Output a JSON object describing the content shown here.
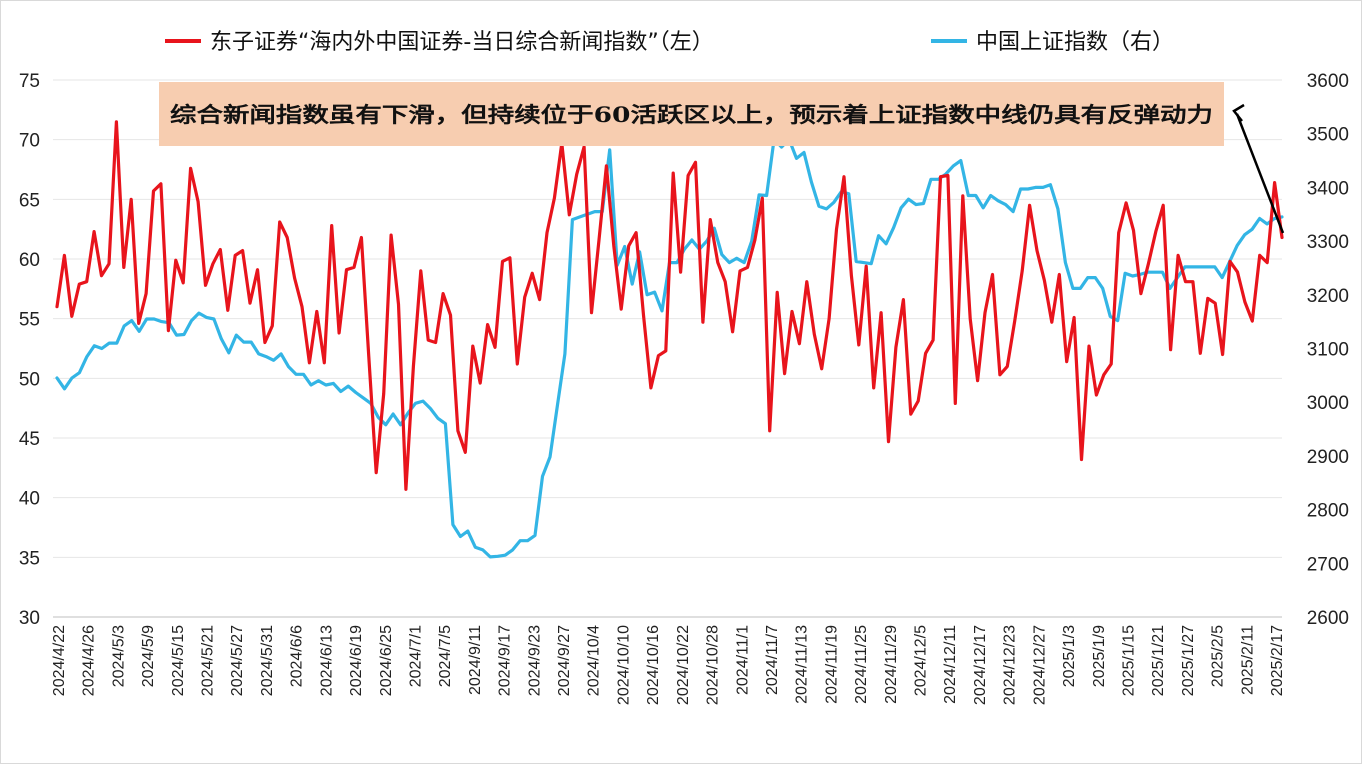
{
  "chart_data": {
    "type": "line",
    "legend": {
      "placement": "top",
      "entries": [
        {
          "label": "东子证券“海内外中国证券-当日综合新闻指数”（左）",
          "color": "#e8141c"
        },
        {
          "label": "中国上证指数（右）",
          "color": "#33b5e5"
        }
      ]
    },
    "annotation": {
      "text": "综合新闻指数虽有下滑，但持续位于60活跃区以上，预示着上证指数中线仍具有反弹动力",
      "background": "#f7cdb0",
      "arrow_color": "#000000"
    },
    "y_left": {
      "range": [
        30,
        75
      ],
      "ticks": [
        "30",
        "35",
        "40",
        "45",
        "50",
        "55",
        "60",
        "65",
        "70",
        "75"
      ]
    },
    "y_right": {
      "range": [
        2600,
        3600
      ],
      "ticks": [
        "2600",
        "2700",
        "2800",
        "2900",
        "3000",
        "3100",
        "3200",
        "3300",
        "3400",
        "3500",
        "3600"
      ]
    },
    "x_tick_labels": [
      "2024/4/22",
      "2024/4/26",
      "2024/5/3",
      "2024/5/9",
      "2024/5/15",
      "2024/5/21",
      "2024/5/27",
      "2024/5/31",
      "2024/6/6",
      "2024/6/13",
      "2024/6/19",
      "2024/6/25",
      "2024/7/1",
      "2024/7/5",
      "2024/9/11",
      "2024/9/17",
      "2024/9/23",
      "2024/9/27",
      "2024/10/4",
      "2024/10/10",
      "2024/10/16",
      "2024/10/22",
      "2024/10/28",
      "2024/11/1",
      "2024/11/7",
      "2024/11/13",
      "2024/11/19",
      "2024/11/25",
      "2024/11/29",
      "2024/12/5",
      "2024/12/11",
      "2024/12/17",
      "2024/12/23",
      "2024/12/27",
      "2025/1/3",
      "2025/1/9",
      "2025/1/15",
      "2025/1/21",
      "2025/1/27",
      "2025/2/5",
      "2025/2/11",
      "2025/2/17"
    ],
    "grid": "horizontal",
    "series": [
      {
        "name": "东子证券“海内外中国证券-当日综合新闻指数”（左）",
        "axis": "left",
        "color": "#e8141c",
        "values": [
          56.0,
          60.3,
          55.2,
          57.9,
          58.1,
          62.3,
          58.6,
          59.6,
          71.5,
          59.3,
          65.0,
          54.6,
          57.1,
          65.7,
          66.3,
          54.0,
          59.9,
          58.0,
          67.6,
          64.8,
          57.8,
          59.6,
          60.8,
          55.7,
          60.3,
          60.7,
          56.3,
          59.1,
          53.0,
          54.4,
          63.1,
          61.8,
          58.4,
          56.0,
          51.3,
          55.6,
          51.3,
          62.8,
          53.8,
          59.1,
          59.3,
          61.8,
          51.8,
          42.1,
          48.7,
          62.0,
          56.2,
          40.7,
          51.0,
          59.0,
          53.2,
          53.0,
          57.1,
          55.3,
          45.6,
          43.8,
          52.7,
          49.6,
          54.5,
          52.6,
          59.8,
          60.1,
          51.2,
          56.8,
          58.8,
          56.6,
          62.2,
          65.1,
          69.7,
          63.7,
          67.1,
          69.4,
          55.5,
          61.6,
          67.8,
          61.1,
          55.8,
          61.1,
          62.2,
          55.3,
          49.2,
          51.9,
          52.3,
          67.2,
          58.9,
          67.0,
          68.1,
          54.7,
          63.3,
          59.7,
          58.1,
          53.9,
          59.0,
          59.3,
          61.6,
          65.1,
          45.6,
          57.2,
          50.4,
          55.6,
          52.9,
          58.1,
          53.7,
          50.8,
          55.0,
          62.5,
          66.9,
          58.6,
          52.8,
          59.4,
          49.2,
          55.5,
          44.7,
          52.6,
          56.6,
          47.0,
          48.1,
          52.1,
          53.2,
          66.9,
          67.0,
          47.9,
          65.3,
          55.0,
          49.8,
          55.5,
          58.7,
          50.3,
          51.0,
          54.8,
          59.0,
          64.5,
          60.7,
          58.2,
          54.7,
          58.7,
          51.4,
          55.1,
          43.2,
          52.7,
          48.6,
          50.3,
          51.2,
          62.2,
          64.7,
          62.4,
          57.1,
          59.6,
          62.3,
          64.5,
          52.4,
          60.3,
          58.1,
          58.1,
          52.1,
          56.7,
          56.3,
          52.0,
          59.8,
          58.9,
          56.4,
          54.8,
          60.3,
          59.7,
          66.4,
          61.8
        ]
      },
      {
        "name": "中国上证指数（右）",
        "axis": "right",
        "color": "#33b5e5",
        "values": [
          3045,
          3025,
          3045,
          3055,
          3085,
          3105,
          3100,
          3110,
          3110,
          3142,
          3152,
          3132,
          3155,
          3155,
          3150,
          3148,
          3125,
          3126,
          3152,
          3166,
          3158,
          3155,
          3118,
          3092,
          3125,
          3112,
          3112,
          3090,
          3085,
          3078,
          3090,
          3066,
          3052,
          3052,
          3032,
          3040,
          3032,
          3035,
          3020,
          3030,
          3018,
          3008,
          2998,
          2972,
          2958,
          2978,
          2958,
          2980,
          2998,
          3002,
          2988,
          2970,
          2960,
          2772,
          2750,
          2760,
          2730,
          2725,
          2712,
          2713,
          2715,
          2725,
          2742,
          2742,
          2752,
          2862,
          2898,
          2995,
          3090,
          3340,
          3345,
          3350,
          3355,
          3355,
          3470,
          3255,
          3290,
          3220,
          3280,
          3200,
          3205,
          3170,
          3260,
          3260,
          3285,
          3302,
          3285,
          3300,
          3324,
          3275,
          3260,
          3268,
          3260,
          3300,
          3386,
          3385,
          3490,
          3475,
          3490,
          3454,
          3465,
          3410,
          3365,
          3360,
          3372,
          3392,
          3388,
          3262,
          3260,
          3258,
          3310,
          3295,
          3325,
          3362,
          3378,
          3368,
          3370,
          3415,
          3415,
          3425,
          3440,
          3450,
          3385,
          3385,
          3362,
          3385,
          3375,
          3368,
          3355,
          3397,
          3397,
          3400,
          3400,
          3405,
          3360,
          3260,
          3212,
          3212,
          3232,
          3232,
          3212,
          3160,
          3152,
          3240,
          3235,
          3238,
          3242,
          3242,
          3242,
          3212,
          3232,
          3252,
          3252,
          3252,
          3252,
          3252,
          3232,
          3262,
          3292,
          3312,
          3322,
          3342,
          3332,
          3342,
          3345
        ]
      }
    ]
  }
}
